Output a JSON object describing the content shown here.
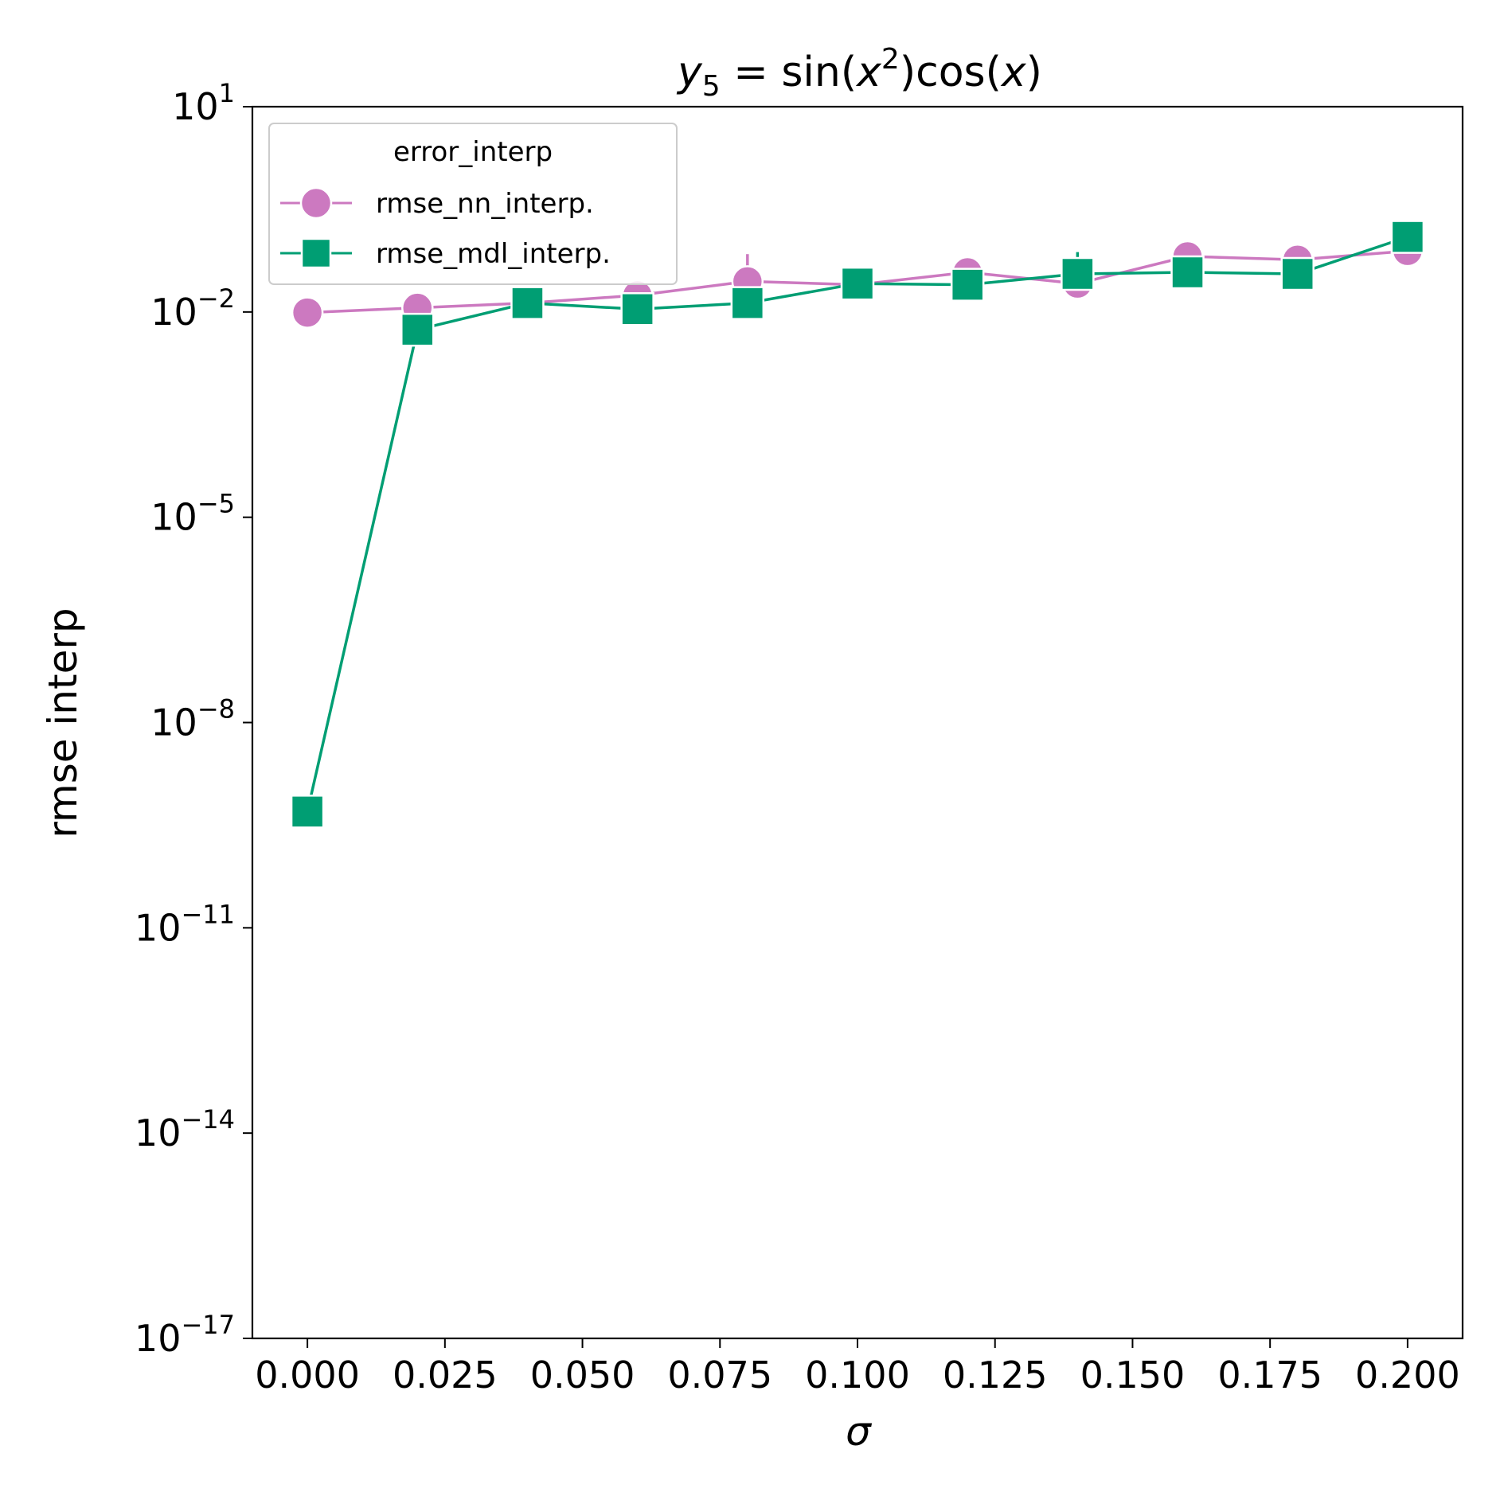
{
  "chart_data": {
    "type": "line",
    "title": "y5 = sin(x²)cos(x)",
    "title_parts": {
      "var": "y",
      "sub": "5",
      "eq": " = sin(",
      "x1": "x",
      "sup": "2",
      "mid": ")cos(",
      "x2": "x",
      "end": ")"
    },
    "xlabel": "σ",
    "ylabel": "rmse interp",
    "yscale": "log",
    "xlim": [
      -0.01,
      0.21
    ],
    "ylim_exp": [
      -17,
      1
    ],
    "x_ticks": [
      0.0,
      0.025,
      0.05,
      0.075,
      0.1,
      0.125,
      0.15,
      0.175,
      0.2
    ],
    "x_tick_labels": [
      "0.000",
      "0.025",
      "0.050",
      "0.075",
      "0.100",
      "0.125",
      "0.150",
      "0.175",
      "0.200"
    ],
    "y_ticks_exp": [
      -17,
      -14,
      -11,
      -8,
      -5,
      -2,
      1
    ],
    "y_tick_labels": [
      {
        "base": "10",
        "exp": "−17"
      },
      {
        "base": "10",
        "exp": "−14"
      },
      {
        "base": "10",
        "exp": "−11"
      },
      {
        "base": "10",
        "exp": "−8"
      },
      {
        "base": "10",
        "exp": "−5"
      },
      {
        "base": "10",
        "exp": "−2"
      },
      {
        "base": "10",
        "exp": "1"
      }
    ],
    "grid": false,
    "legend": {
      "title": "error_interp",
      "placement": "top-left"
    },
    "x": [
      0.0,
      0.02,
      0.04,
      0.06,
      0.08,
      0.1,
      0.12,
      0.14,
      0.16,
      0.18,
      0.2
    ],
    "series": [
      {
        "name": "rmse_nn_interp.",
        "color": "#cc79c0",
        "marker": "circle",
        "values": [
          0.0098,
          0.0115,
          0.0135,
          0.0175,
          0.028,
          0.025,
          0.038,
          0.026,
          0.065,
          0.058,
          0.078
        ],
        "err_low": [
          0.0098,
          0.011,
          0.013,
          0.016,
          0.022,
          0.024,
          0.035,
          0.023,
          0.055,
          0.052,
          0.072
        ],
        "err_high": [
          0.0098,
          0.012,
          0.014,
          0.019,
          0.07,
          0.026,
          0.041,
          0.03,
          0.075,
          0.064,
          0.085
        ]
      },
      {
        "name": "rmse_mdl_interp.",
        "color": "#009e73",
        "marker": "square",
        "values": [
          5e-10,
          0.0055,
          0.0135,
          0.011,
          0.0135,
          0.026,
          0.025,
          0.036,
          0.038,
          0.036,
          0.125
        ],
        "err_low": [
          3.5e-10,
          0.0035,
          0.012,
          0.01,
          0.011,
          0.024,
          0.023,
          0.03,
          0.022,
          0.034,
          0.115
        ],
        "err_high": [
          8e-10,
          0.0065,
          0.015,
          0.012,
          0.022,
          0.028,
          0.027,
          0.075,
          0.06,
          0.038,
          0.135
        ]
      }
    ]
  }
}
